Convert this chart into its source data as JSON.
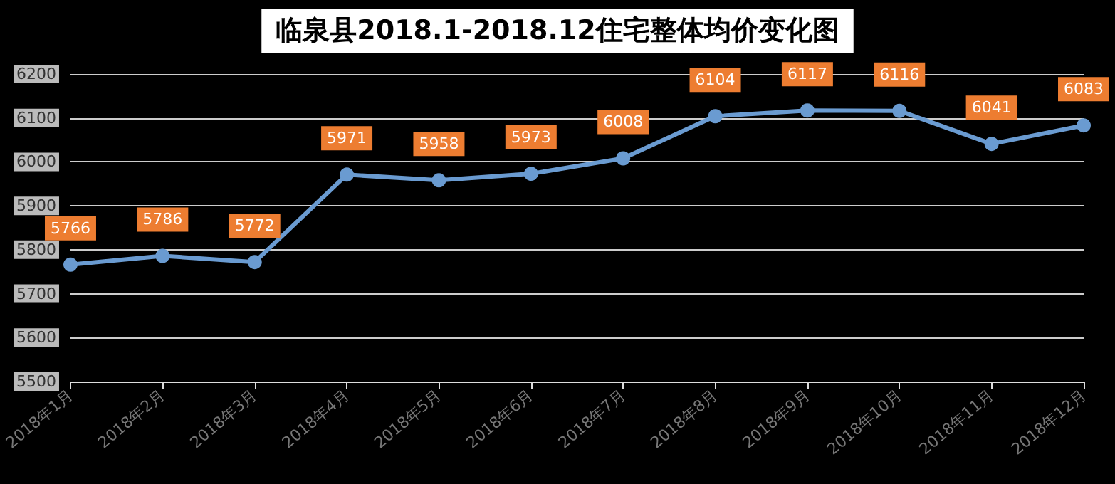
{
  "chart_data": {
    "type": "line",
    "title": "临泉县2018.1-2018.12住宅整体均价变化图",
    "categories": [
      "2018年1月",
      "2018年2月",
      "2018年3月",
      "2018年4月",
      "2018年5月",
      "2018年6月",
      "2018年7月",
      "2018年8月",
      "2018年9月",
      "2018年10月",
      "2018年11月",
      "2018年12月"
    ],
    "series": [
      {
        "color": "#6a9bd1",
        "values": [
          5766,
          5786,
          5772,
          5971,
          5958,
          5973,
          6008,
          6104,
          6117,
          6116,
          6041,
          6083
        ]
      }
    ],
    "ylim": [
      5500,
      6200
    ],
    "yticks": [
      5500,
      5600,
      5700,
      5800,
      5900,
      6000,
      6100,
      6200
    ],
    "grid": "y",
    "marker": "circle",
    "line_style": "solid",
    "data_labels": true
  }
}
